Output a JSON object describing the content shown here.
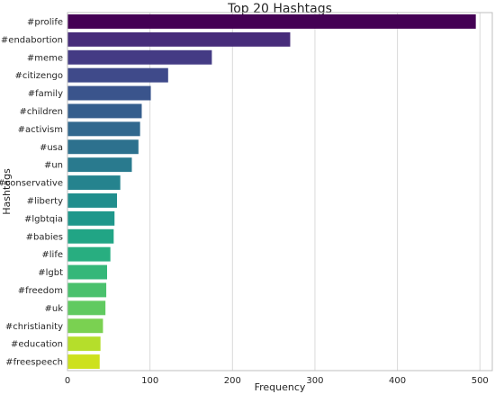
{
  "chart_data": {
    "type": "bar",
    "orientation": "horizontal",
    "title": "Top 20 Hashtags",
    "xlabel": "Frequency",
    "ylabel": "Hashtags",
    "xlim": [
      0,
      515
    ],
    "xticks": [
      0,
      100,
      200,
      300,
      400,
      500
    ],
    "grid": "vertical",
    "categories": [
      "#prolife",
      "#endabortion",
      "#meme",
      "#citizengo",
      "#family",
      "#children",
      "#activism",
      "#usa",
      "#un",
      "#conservative",
      "#liberty",
      "#lgbtqia",
      "#babies",
      "#life",
      "#lgbt",
      "#freedom",
      "#uk",
      "#christianity",
      "#education",
      "#freespeech"
    ],
    "values": [
      495,
      270,
      175,
      122,
      101,
      90,
      88,
      86,
      78,
      64,
      60,
      57,
      56,
      52,
      48,
      47,
      46,
      43,
      40,
      39
    ],
    "colors": [
      "#440154",
      "#472c7a",
      "#443b84",
      "#3f4a8a",
      "#3a548c",
      "#355e8d",
      "#31688e",
      "#2d718e",
      "#297a8e",
      "#25838e",
      "#218e8d",
      "#1f978b",
      "#21a585",
      "#28ae80",
      "#35b779",
      "#4ac16d",
      "#60ca60",
      "#7ad151",
      "#b5de2b",
      "#cde11d"
    ]
  }
}
